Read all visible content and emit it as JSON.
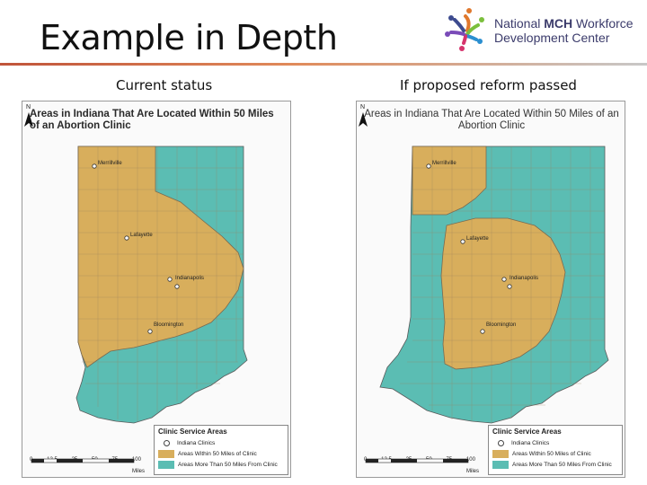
{
  "slide": {
    "title": "Example in Depth"
  },
  "logo": {
    "line1_prefix": "National ",
    "line1_bold": "MCH",
    "line1_suffix": " Workforce",
    "line2": "Development Center"
  },
  "captions": {
    "left": "Current status",
    "right": "If proposed reform passed"
  },
  "maps": [
    {
      "title": "Areas in Indiana That Are Located Within 50 Miles of an Abortion Clinic",
      "cities": [
        "Merrillville",
        "Lafayette",
        "Indianapolis",
        "Bloomington"
      ],
      "legend": {
        "title": "Clinic Service Areas",
        "items": [
          "Indiana Clinics",
          "Areas Within 50 Miles of Clinic",
          "Areas More Than 50 Miles From Clinic"
        ]
      },
      "scale": {
        "ticks": [
          "0",
          "12.5",
          "25",
          "50",
          "75",
          "100"
        ],
        "unit": "Miles"
      },
      "north": "N"
    },
    {
      "title": "Areas in Indiana That Are Located Within 50 Miles of an Abortion Clinic",
      "cities": [
        "Merrillville",
        "Lafayette",
        "Indianapolis",
        "Bloomington"
      ],
      "legend": {
        "title": "Clinic Service Areas",
        "items": [
          "Indiana Clinics",
          "Areas Within 50 Miles of Clinic",
          "Areas More Than 50 Miles From Clinic"
        ]
      },
      "scale": {
        "ticks": [
          "0",
          "12.5",
          "25",
          "50",
          "75",
          "100"
        ],
        "unit": "Miles"
      },
      "north": "N"
    }
  ],
  "colors": {
    "within": "#d8ae5c",
    "beyond": "#5bbdb3",
    "border": "#7a6a50",
    "title_rule": "#c0543a"
  }
}
